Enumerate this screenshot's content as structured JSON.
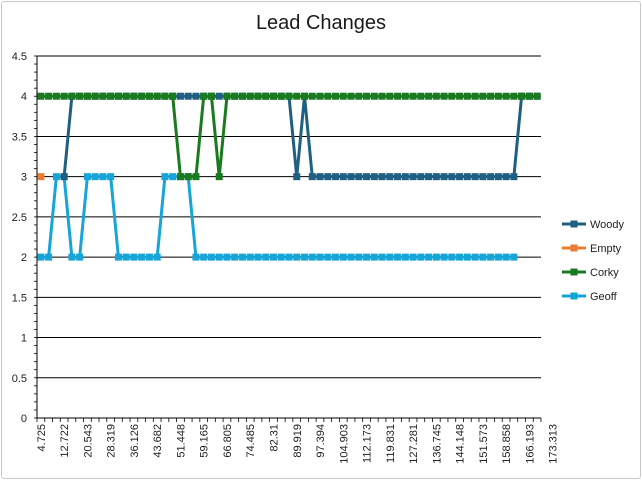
{
  "chart_data": {
    "type": "line",
    "title": "Lead Changes",
    "xlabel": "",
    "ylabel": "",
    "ylim": [
      0,
      4.5
    ],
    "yticks": [
      "0",
      "0.5",
      "1",
      "1.5",
      "2",
      "2.5",
      "3",
      "3.5",
      "4",
      "4.5"
    ],
    "y_tick_values": [
      0,
      0.5,
      1,
      1.5,
      2,
      2.5,
      3,
      3.5,
      4,
      4.5
    ],
    "x_tick_labels": [
      "4.725",
      "12.722",
      "20.543",
      "28.319",
      "36.126",
      "43.682",
      "51.448",
      "59.165",
      "66.805",
      "74.485",
      "82.31",
      "89.919",
      "97.394",
      "104.903",
      "112.173",
      "119.831",
      "127.281",
      "136.745",
      "144.148",
      "151.573",
      "158.858",
      "166.193",
      "173.313"
    ],
    "grid": "horizontal",
    "legend_position": "right",
    "series": [
      {
        "name": "Woody",
        "color": "#1e5f82",
        "values": [
          null,
          null,
          null,
          3,
          4,
          4,
          4,
          4,
          4,
          4,
          4,
          4,
          4,
          4,
          4,
          4,
          4,
          4,
          4,
          4,
          4,
          4,
          4,
          4,
          4,
          4,
          4,
          4,
          4,
          4,
          4,
          4,
          4,
          3,
          4,
          3,
          3,
          3,
          3,
          3,
          3,
          3,
          3,
          3,
          3,
          3,
          3,
          3,
          3,
          3,
          3,
          3,
          3,
          3,
          3,
          3,
          3,
          3,
          3,
          3,
          3,
          3,
          4,
          4,
          4
        ]
      },
      {
        "name": "Empty",
        "color": "#e97d32",
        "values": [
          3
        ]
      },
      {
        "name": "Corky",
        "color": "#1a7a1f",
        "values": [
          4,
          4,
          4,
          4,
          4,
          4,
          4,
          4,
          4,
          4,
          4,
          4,
          4,
          4,
          4,
          4,
          4,
          4,
          3,
          3,
          3,
          4,
          4,
          3,
          4,
          4,
          4,
          4,
          4,
          4,
          4,
          4,
          4,
          4,
          4,
          4,
          4,
          4,
          4,
          4,
          4,
          4,
          4,
          4,
          4,
          4,
          4,
          4,
          4,
          4,
          4,
          4,
          4,
          4,
          4,
          4,
          4,
          4,
          4,
          4,
          4,
          4,
          4,
          4,
          4
        ]
      },
      {
        "name": "Geoff",
        "color": "#16a5d6",
        "values": [
          2,
          2,
          3,
          3,
          2,
          2,
          3,
          3,
          3,
          3,
          2,
          2,
          2,
          2,
          2,
          2,
          3,
          3,
          3,
          3,
          2,
          2,
          2,
          2,
          2,
          2,
          2,
          2,
          2,
          2,
          2,
          2,
          2,
          2,
          2,
          2,
          2,
          2,
          2,
          2,
          2,
          2,
          2,
          2,
          2,
          2,
          2,
          2,
          2,
          2,
          2,
          2,
          2,
          2,
          2,
          2,
          2,
          2,
          2,
          2,
          2,
          2
        ]
      }
    ]
  }
}
